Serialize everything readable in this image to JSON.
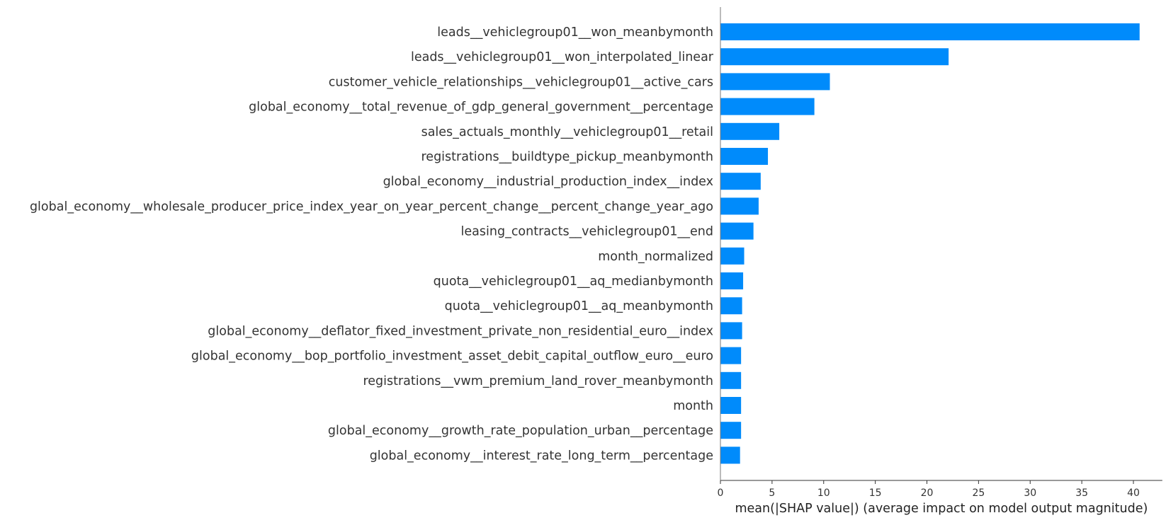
{
  "chart_data": {
    "type": "bar",
    "orientation": "horizontal",
    "title": "",
    "xlabel": "mean(|SHAP value|) (average impact on model output magnitude)",
    "ylabel": "",
    "xlim": [
      0,
      42.8
    ],
    "xticks": [
      0,
      5,
      10,
      15,
      20,
      25,
      30,
      35,
      40
    ],
    "grid": false,
    "legend": "none",
    "bar_color": "#008bfb",
    "categories": [
      "leads__vehiclegroup01__won_meanbymonth",
      "leads__vehiclegroup01__won_interpolated_linear",
      "customer_vehicle_relationships__vehiclegroup01__active_cars",
      "global_economy__total_revenue_of_gdp_general_government__percentage",
      "sales_actuals_monthly__vehiclegroup01__retail",
      "registrations__buildtype_pickup_meanbymonth",
      "global_economy__industrial_production_index__index",
      "global_economy__wholesale_producer_price_index_year_on_year_percent_change__percent_change_year_ago",
      "leasing_contracts__vehiclegroup01__end",
      "month_normalized",
      "quota__vehiclegroup01__aq_medianbymonth",
      "quota__vehiclegroup01__aq_meanbymonth",
      "global_economy__deflator_fixed_investment_private_non_residential_euro__index",
      "global_economy__bop_portfolio_investment_asset_debit_capital_outflow_euro__euro",
      "registrations__vwm_premium_land_rover_meanbymonth",
      "month",
      "global_economy__growth_rate_population_urban__percentage",
      "global_economy__interest_rate_long_term__percentage"
    ],
    "values": [
      40.6,
      22.1,
      10.6,
      9.1,
      5.7,
      4.6,
      3.9,
      3.7,
      3.2,
      2.3,
      2.2,
      2.1,
      2.1,
      2.0,
      2.0,
      2.0,
      2.0,
      1.9
    ]
  }
}
